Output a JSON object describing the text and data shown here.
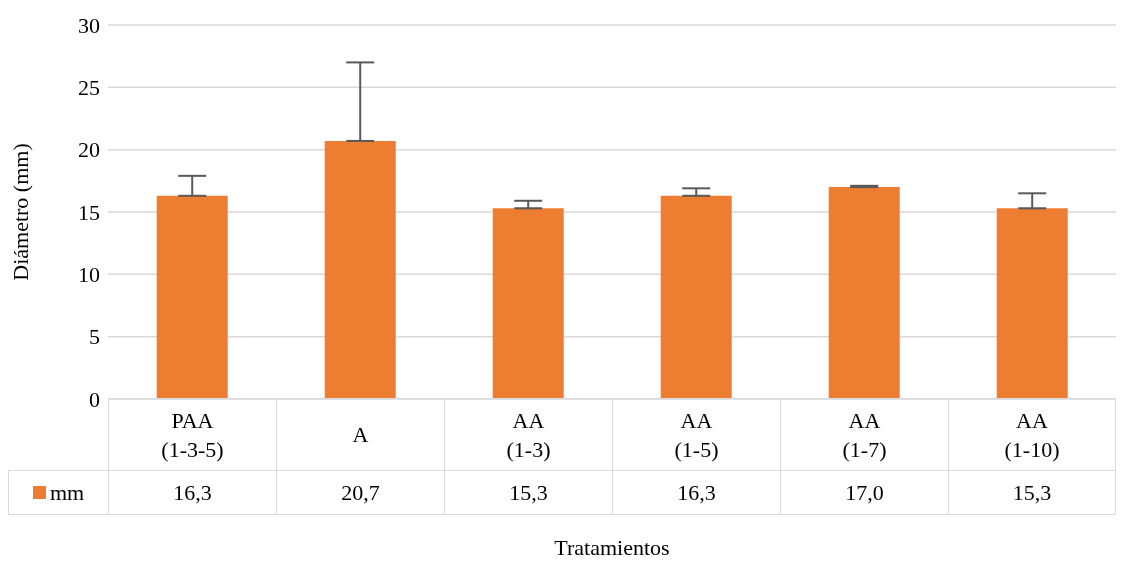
{
  "chart_data": {
    "type": "bar",
    "xlabel": "Tratamientos",
    "ylabel": "Diámetro (mm)",
    "categories": [
      "PAA (1-3-5)",
      "A",
      "AA (1-3)",
      "AA (1-5)",
      "AA (1-7)",
      "AA (1-10)"
    ],
    "series": [
      {
        "name": "mm",
        "color": "#ed7d31",
        "values": [
          16.3,
          20.7,
          15.3,
          16.3,
          17.0,
          15.3
        ],
        "value_labels": [
          "16,3",
          "20,7",
          "15,3",
          "16,3",
          "17,0",
          "15,3"
        ],
        "errors": [
          [
            16.3,
            17.9
          ],
          [
            20.7,
            27.0
          ],
          [
            15.3,
            15.9
          ],
          [
            16.3,
            16.9
          ],
          [
            17.0,
            17.1
          ],
          [
            15.3,
            16.5
          ]
        ]
      }
    ],
    "ylim": [
      0,
      30
    ],
    "yticks": [
      0,
      5,
      10,
      15,
      20,
      25,
      30
    ],
    "grid": "y",
    "legend": "bottom",
    "data_labels": true
  }
}
